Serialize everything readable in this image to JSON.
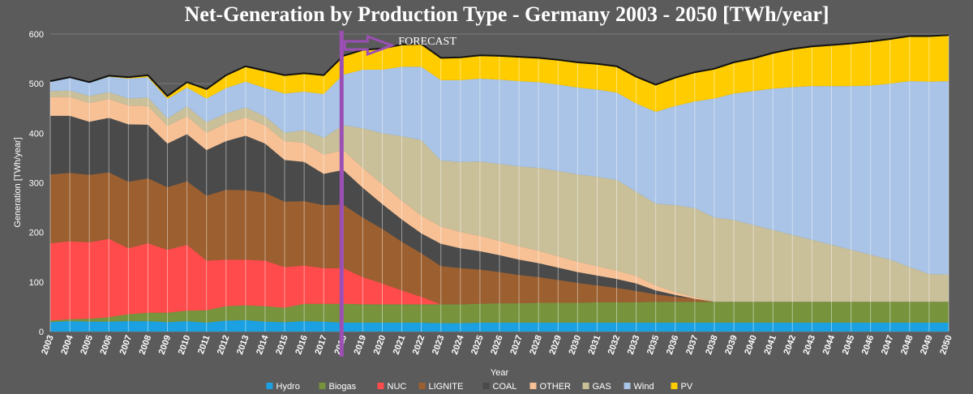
{
  "chart_data": {
    "type": "area",
    "stacked": true,
    "title": "Net-Generation by Production Type - Germany  2003 - 2050 [TWh/year]",
    "xlabel": "Year",
    "ylabel": "Generation [TWh/year]",
    "ylim": [
      0,
      600
    ],
    "yticks": [
      0,
      100,
      200,
      300,
      400,
      500,
      600
    ],
    "grid": true,
    "legend_position": "bottom",
    "forecast": {
      "label": "FORECAST",
      "year": 2018
    },
    "x": [
      2003,
      2004,
      2005,
      2006,
      2007,
      2008,
      2009,
      2010,
      2011,
      2012,
      2013,
      2014,
      2015,
      2016,
      2017,
      2018,
      2019,
      2020,
      2021,
      2022,
      2023,
      2024,
      2025,
      2026,
      2027,
      2028,
      2029,
      2030,
      2031,
      2032,
      2033,
      2035,
      2036,
      2037,
      2038,
      2039,
      2040,
      2041,
      2042,
      2043,
      2044,
      2045,
      2046,
      2047,
      2048,
      2049,
      2050
    ],
    "series": [
      {
        "name": "Hydro",
        "color": "#1ba1e2",
        "values": [
          19,
          21,
          20,
          20,
          21,
          21,
          19,
          21,
          18,
          22,
          23,
          20,
          19,
          21,
          20,
          18,
          18,
          18,
          18,
          18,
          17,
          17,
          18,
          18,
          18,
          18,
          18,
          18,
          18,
          18,
          18,
          18,
          18,
          18,
          18,
          18,
          18,
          18,
          18,
          18,
          18,
          18,
          18,
          18,
          18,
          18,
          18
        ]
      },
      {
        "name": "Biogas",
        "color": "#77933c",
        "values": [
          3,
          4,
          6,
          9,
          14,
          17,
          19,
          21,
          25,
          29,
          30,
          31,
          29,
          35,
          36,
          38,
          37,
          37,
          37,
          37,
          38,
          38,
          38,
          39,
          39,
          40,
          40,
          40,
          41,
          41,
          41,
          42,
          42,
          42,
          42,
          42,
          42,
          42,
          42,
          42,
          42,
          42,
          42,
          42,
          42,
          42,
          42
        ]
      },
      {
        "name": "NUC",
        "color": "#ff4b4b",
        "values": [
          156,
          157,
          154,
          158,
          133,
          140,
          127,
          133,
          100,
          94,
          92,
          92,
          82,
          77,
          72,
          72,
          55,
          42,
          28,
          15,
          0,
          0,
          0,
          0,
          0,
          0,
          0,
          0,
          0,
          0,
          0,
          0,
          0,
          0,
          0,
          0,
          0,
          0,
          0,
          0,
          0,
          0,
          0,
          0,
          0,
          0,
          0
        ]
      },
      {
        "name": "LIGNITE",
        "color": "#9c5f2f",
        "values": [
          139,
          138,
          136,
          134,
          134,
          131,
          126,
          128,
          131,
          141,
          140,
          137,
          132,
          130,
          127,
          128,
          120,
          110,
          98,
          88,
          77,
          73,
          69,
          63,
          57,
          52,
          46,
          40,
          34,
          29,
          23,
          15,
          10,
          6,
          0,
          0,
          0,
          0,
          0,
          0,
          0,
          0,
          0,
          0,
          0,
          0,
          0
        ]
      },
      {
        "name": "COAL",
        "color": "#4a4a4a",
        "values": [
          118,
          115,
          107,
          110,
          116,
          108,
          88,
          95,
          92,
          98,
          110,
          99,
          84,
          79,
          63,
          70,
          60,
          50,
          45,
          40,
          45,
          40,
          37,
          34,
          31,
          28,
          25,
          22,
          20,
          18,
          15,
          8,
          4,
          0,
          0,
          0,
          0,
          0,
          0,
          0,
          0,
          0,
          0,
          0,
          0,
          0,
          0
        ]
      },
      {
        "name": "OTHER",
        "color": "#f7c195",
        "values": [
          38,
          38,
          38,
          38,
          38,
          38,
          36,
          36,
          35,
          36,
          37,
          37,
          38,
          39,
          39,
          40,
          40,
          40,
          38,
          36,
          35,
          33,
          31,
          29,
          27,
          25,
          23,
          21,
          19,
          17,
          15,
          10,
          6,
          3,
          0,
          0,
          0,
          0,
          0,
          0,
          0,
          0,
          0,
          0,
          0,
          0,
          0
        ]
      },
      {
        "name": "GAS",
        "color": "#c9c09a",
        "values": [
          12,
          13,
          14,
          14,
          14,
          17,
          15,
          20,
          21,
          20,
          20,
          18,
          17,
          25,
          34,
          50,
          80,
          103,
          130,
          152,
          133,
          141,
          150,
          155,
          161,
          167,
          172,
          176,
          180,
          183,
          170,
          165,
          175,
          180,
          170,
          165,
          155,
          145,
          135,
          125,
          115,
          105,
          95,
          85,
          70,
          56,
          55
        ]
      },
      {
        "name": "Wind",
        "color": "#a9c4e6",
        "values": [
          19,
          26,
          27,
          31,
          40,
          41,
          39,
          38,
          48,
          51,
          52,
          57,
          79,
          78,
          88,
          102,
          118,
          128,
          140,
          148,
          162,
          165,
          167,
          170,
          172,
          173,
          174,
          175,
          176,
          176,
          178,
          185,
          200,
          215,
          240,
          255,
          270,
          285,
          298,
          310,
          320,
          330,
          341,
          355,
          375,
          388,
          390
        ]
      },
      {
        "name": "PV",
        "color": "#ffcc00",
        "values": [
          1,
          1,
          1,
          2,
          3,
          4,
          6,
          11,
          19,
          26,
          31,
          35,
          37,
          37,
          38,
          38,
          40,
          43,
          45,
          46,
          45,
          46,
          47,
          48,
          49,
          49,
          50,
          51,
          52,
          53,
          54,
          55,
          57,
          59,
          60,
          63,
          66,
          72,
          77,
          80,
          83,
          86,
          89,
          90,
          91,
          92,
          93
        ]
      }
    ]
  },
  "legend": {
    "items": [
      {
        "label": "Hydro",
        "color": "#1ba1e2"
      },
      {
        "label": "Biogas",
        "color": "#77933c"
      },
      {
        "label": "NUC",
        "color": "#ff4b4b"
      },
      {
        "label": "LIGNITE",
        "color": "#9c5f2f"
      },
      {
        "label": "COAL",
        "color": "#4a4a4a"
      },
      {
        "label": "OTHER",
        "color": "#f7c195"
      },
      {
        "label": "GAS",
        "color": "#c9c09a"
      },
      {
        "label": "Wind",
        "color": "#a9c4e6"
      },
      {
        "label": "PV",
        "color": "#ffcc00"
      }
    ]
  }
}
